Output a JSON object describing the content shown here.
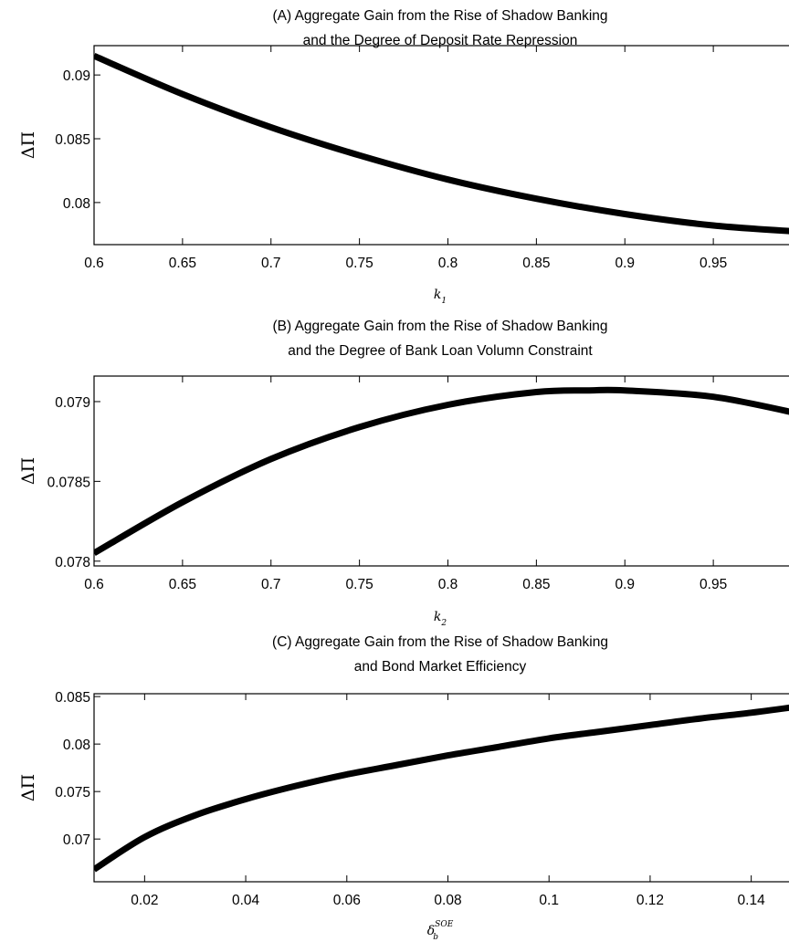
{
  "chart_data": [
    {
      "type": "line",
      "title_lines": [
        "(A) Aggregate Gain from the Rise of Shadow Banking",
        "and the Degree of Deposit Rate Repression"
      ],
      "ylabel": "ΔΠ",
      "xlabel": "k",
      "xlabel_sub": "1",
      "xlabel_sup": "",
      "xlim": [
        0.6,
        1.0
      ],
      "ylim": [
        0.0767,
        0.0923
      ],
      "xticks": [
        0.6,
        0.65,
        0.7,
        0.75,
        0.8,
        0.85,
        0.9,
        0.95,
        1.0
      ],
      "xtick_labels": [
        "0.6",
        "0.65",
        "0.7",
        "0.75",
        "0.8",
        "0.85",
        "0.9",
        "0.95",
        ""
      ],
      "yticks": [
        0.08,
        0.085,
        0.09
      ],
      "ytick_labels": [
        "0.08",
        "0.085",
        "0.09"
      ],
      "grid": false,
      "series": [
        {
          "x": [
            0.6,
            0.65,
            0.7,
            0.75,
            0.8,
            0.85,
            0.9,
            0.95,
            1.0
          ],
          "y": [
            0.0915,
            0.0885,
            0.0859,
            0.0837,
            0.0818,
            0.0803,
            0.0791,
            0.0782,
            0.0777
          ]
        }
      ]
    },
    {
      "type": "line",
      "title_lines": [
        "(B) Aggregate Gain from the Rise of Shadow Banking",
        "and the Degree of Bank Loan Volumn Constraint"
      ],
      "ylabel": "ΔΠ",
      "xlabel": "k",
      "xlabel_sub": "2",
      "xlabel_sup": "",
      "xlim": [
        0.6,
        1.0
      ],
      "ylim": [
        0.07797,
        0.07916
      ],
      "xticks": [
        0.6,
        0.65,
        0.7,
        0.75,
        0.8,
        0.85,
        0.9,
        0.95,
        1.0
      ],
      "xtick_labels": [
        "0.6",
        "0.65",
        "0.7",
        "0.75",
        "0.8",
        "0.85",
        "0.9",
        "0.95",
        ""
      ],
      "yticks": [
        0.078,
        0.0785,
        0.079
      ],
      "ytick_labels": [
        "0.078",
        "0.0785",
        "0.079"
      ],
      "grid": false,
      "series": [
        {
          "x": [
            0.6,
            0.65,
            0.7,
            0.75,
            0.8,
            0.85,
            0.88,
            0.9,
            0.95,
            1.0
          ],
          "y": [
            0.07805,
            0.07837,
            0.07864,
            0.07884,
            0.07898,
            0.07906,
            0.07907,
            0.07907,
            0.07903,
            0.07892
          ]
        }
      ]
    },
    {
      "type": "line",
      "title_lines": [
        "(C) Aggregate Gain from the Rise of Shadow Banking",
        "and Bond Market Efficiency"
      ],
      "ylabel": "ΔΠ",
      "xlabel": "δ",
      "xlabel_sub": "b",
      "xlabel_sup": "SOE",
      "xlim": [
        0.01,
        0.15
      ],
      "ylim": [
        0.0655,
        0.0853
      ],
      "xticks": [
        0.02,
        0.04,
        0.06,
        0.08,
        0.1,
        0.12,
        0.14
      ],
      "xtick_labels": [
        "0.02",
        "0.04",
        "0.06",
        "0.08",
        "0.1",
        "0.12",
        "0.14"
      ],
      "yticks": [
        0.07,
        0.075,
        0.08,
        0.085
      ],
      "ytick_labels": [
        "0.07",
        "0.075",
        "0.08",
        "0.085"
      ],
      "grid": false,
      "series": [
        {
          "x": [
            0.01,
            0.02,
            0.03,
            0.04,
            0.05,
            0.06,
            0.07,
            0.08,
            0.09,
            0.1,
            0.11,
            0.12,
            0.13,
            0.14,
            0.15
          ],
          "y": [
            0.0668,
            0.0702,
            0.0725,
            0.0742,
            0.0756,
            0.0768,
            0.0778,
            0.0788,
            0.0797,
            0.0806,
            0.0813,
            0.082,
            0.0827,
            0.0833,
            0.084
          ]
        }
      ]
    }
  ]
}
